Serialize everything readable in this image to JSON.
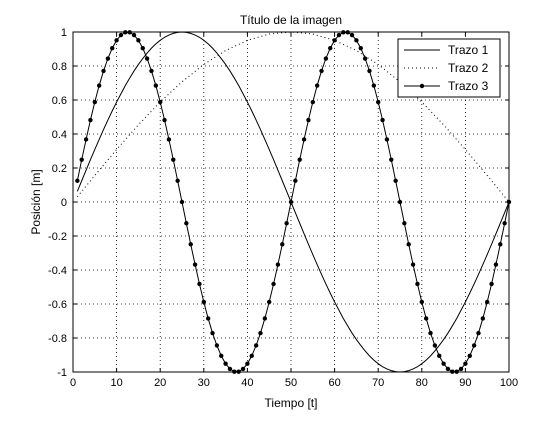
{
  "chart_data": {
    "type": "line",
    "title": "Título de la imagen",
    "xlabel": "Tiempo [t]",
    "ylabel": "Posición [m]",
    "xlim": [
      0,
      100
    ],
    "ylim": [
      -1,
      1
    ],
    "xticks": [
      "0",
      "10",
      "20",
      "30",
      "40",
      "50",
      "60",
      "70",
      "80",
      "90",
      "100"
    ],
    "yticks": [
      "-1",
      "-0.8",
      "-0.6",
      "-0.4",
      "-0.2",
      "0",
      "0.2",
      "0.4",
      "0.6",
      "0.8",
      "1"
    ],
    "grid": true,
    "legend_position": "top-right",
    "series": [
      {
        "name": "Trazo 1",
        "style": "solid",
        "markers": false,
        "x": [
          1,
          2,
          3,
          4,
          5,
          6,
          7,
          8,
          9,
          10,
          11,
          12,
          13,
          14,
          15,
          16,
          17,
          18,
          19,
          20,
          21,
          22,
          23,
          24,
          25,
          26,
          27,
          28,
          29,
          30,
          31,
          32,
          33,
          34,
          35,
          36,
          37,
          38,
          39,
          40,
          41,
          42,
          43,
          44,
          45,
          46,
          47,
          48,
          49,
          50,
          51,
          52,
          53,
          54,
          55,
          56,
          57,
          58,
          59,
          60,
          61,
          62,
          63,
          64,
          65,
          66,
          67,
          68,
          69,
          70,
          71,
          72,
          73,
          74,
          75,
          76,
          77,
          78,
          79,
          80,
          81,
          82,
          83,
          84,
          85,
          86,
          87,
          88,
          89,
          90,
          91,
          92,
          93,
          94,
          95,
          96,
          97,
          98,
          99,
          100
        ],
        "y": [
          0.063,
          0.125,
          0.187,
          0.249,
          0.309,
          0.368,
          0.426,
          0.482,
          0.536,
          0.588,
          0.637,
          0.685,
          0.729,
          0.771,
          0.809,
          0.844,
          0.876,
          0.905,
          0.93,
          0.951,
          0.969,
          0.982,
          0.992,
          0.998,
          1.0,
          0.998,
          0.992,
          0.982,
          0.969,
          0.951,
          0.93,
          0.905,
          0.876,
          0.844,
          0.809,
          0.771,
          0.729,
          0.685,
          0.637,
          0.588,
          0.536,
          0.482,
          0.426,
          0.368,
          0.309,
          0.249,
          0.187,
          0.125,
          0.063,
          0.0,
          -0.063,
          -0.125,
          -0.187,
          -0.249,
          -0.309,
          -0.368,
          -0.426,
          -0.482,
          -0.536,
          -0.588,
          -0.637,
          -0.685,
          -0.729,
          -0.771,
          -0.809,
          -0.844,
          -0.876,
          -0.905,
          -0.93,
          -0.951,
          -0.969,
          -0.982,
          -0.992,
          -0.998,
          -1.0,
          -0.998,
          -0.992,
          -0.982,
          -0.969,
          -0.951,
          -0.93,
          -0.905,
          -0.876,
          -0.844,
          -0.809,
          -0.771,
          -0.729,
          -0.685,
          -0.637,
          -0.588,
          -0.536,
          -0.482,
          -0.426,
          -0.368,
          -0.309,
          -0.249,
          -0.187,
          -0.125,
          -0.063,
          0.0
        ]
      },
      {
        "name": "Trazo 2",
        "style": "dotted",
        "markers": false,
        "x": [
          1,
          5,
          10,
          15,
          20,
          25,
          30,
          35,
          40,
          45,
          50,
          55,
          60,
          65,
          70,
          75,
          80,
          85,
          90,
          95,
          100
        ],
        "y": [
          0.031,
          0.156,
          0.309,
          0.454,
          0.588,
          0.707,
          0.809,
          0.891,
          0.951,
          0.988,
          1.0,
          0.988,
          0.951,
          0.891,
          0.809,
          0.707,
          0.588,
          0.454,
          0.309,
          0.156,
          0.0
        ]
      },
      {
        "name": "Trazo 3",
        "style": "solid",
        "markers": true,
        "x": [
          1,
          2,
          3,
          4,
          5,
          6,
          7,
          8,
          9,
          10,
          11,
          12,
          13,
          14,
          15,
          16,
          17,
          18,
          19,
          20,
          21,
          22,
          23,
          24,
          25,
          26,
          27,
          28,
          29,
          30,
          31,
          32,
          33,
          34,
          35,
          36,
          37,
          38,
          39,
          40,
          41,
          42,
          43,
          44,
          45,
          46,
          47,
          48,
          49,
          50,
          51,
          52,
          53,
          54,
          55,
          56,
          57,
          58,
          59,
          60,
          61,
          62,
          63,
          64,
          65,
          66,
          67,
          68,
          69,
          70,
          71,
          72,
          73,
          74,
          75,
          76,
          77,
          78,
          79,
          80,
          81,
          82,
          83,
          84,
          85,
          86,
          87,
          88,
          89,
          90,
          91,
          92,
          93,
          94,
          95,
          96,
          97,
          98,
          99,
          100
        ],
        "y": [
          0.125,
          0.249,
          0.368,
          0.482,
          0.588,
          0.685,
          0.771,
          0.844,
          0.905,
          0.951,
          0.982,
          0.998,
          0.998,
          0.982,
          0.951,
          0.905,
          0.844,
          0.771,
          0.685,
          0.588,
          0.482,
          0.368,
          0.249,
          0.125,
          0.0,
          -0.125,
          -0.249,
          -0.368,
          -0.482,
          -0.588,
          -0.685,
          -0.771,
          -0.844,
          -0.905,
          -0.951,
          -0.982,
          -0.998,
          -0.998,
          -0.982,
          -0.951,
          -0.905,
          -0.844,
          -0.771,
          -0.685,
          -0.588,
          -0.482,
          -0.368,
          -0.249,
          -0.125,
          0.0,
          0.125,
          0.249,
          0.368,
          0.482,
          0.588,
          0.685,
          0.771,
          0.844,
          0.905,
          0.951,
          0.982,
          0.998,
          0.998,
          0.982,
          0.951,
          0.905,
          0.844,
          0.771,
          0.685,
          0.588,
          0.482,
          0.368,
          0.249,
          0.125,
          0.0,
          -0.125,
          -0.249,
          -0.368,
          -0.482,
          -0.588,
          -0.685,
          -0.771,
          -0.844,
          -0.905,
          -0.951,
          -0.982,
          -0.998,
          -0.998,
          -0.982,
          -0.951,
          -0.905,
          -0.844,
          -0.771,
          -0.685,
          -0.588,
          -0.482,
          -0.368,
          -0.249,
          -0.125,
          0.0
        ]
      }
    ]
  }
}
